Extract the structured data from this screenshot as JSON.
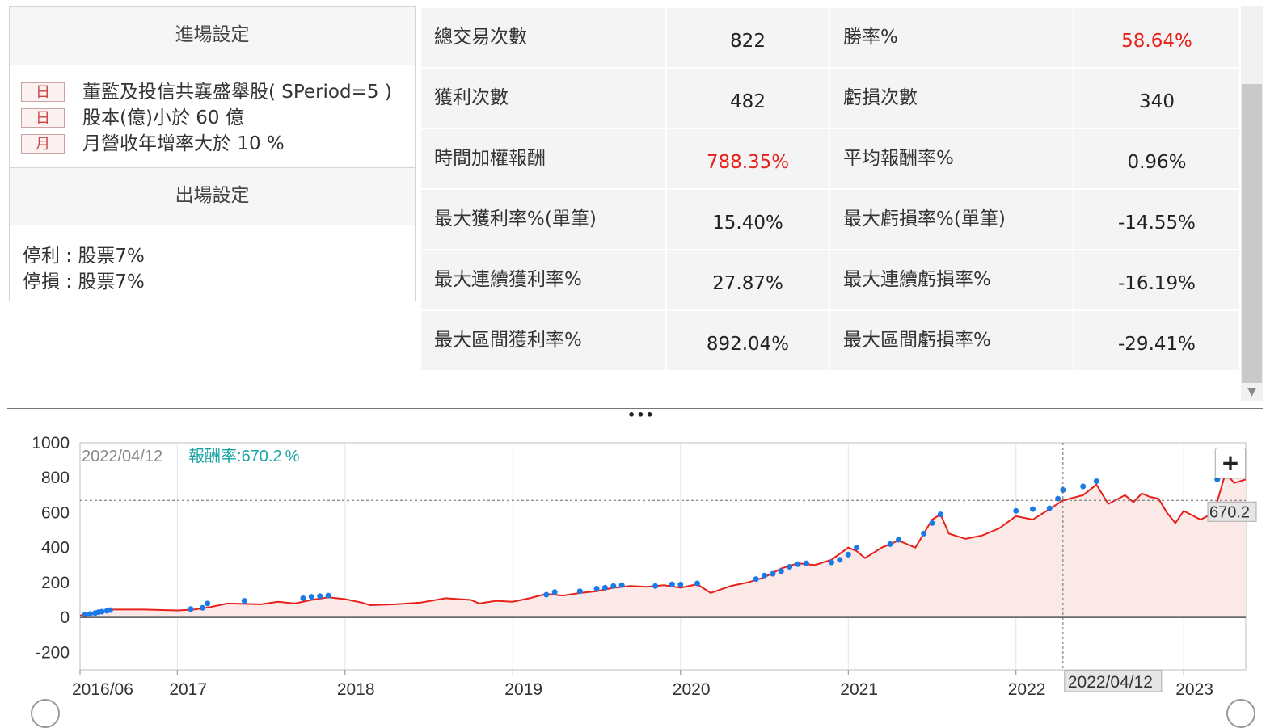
{
  "settings": {
    "entry_title": "進場設定",
    "conditions": [
      {
        "badge": "日",
        "text": "董監及投信共襄盛舉股( SPeriod=5 )"
      },
      {
        "badge": "日",
        "text": "股本(億)小於 60 億"
      },
      {
        "badge": "月",
        "text": "月營收年增率大於 10 %"
      }
    ],
    "exit_title": "出場設定",
    "exit_lines": [
      "停利 : 股票7%",
      "停損 : 股票7%"
    ]
  },
  "stats": {
    "rows": [
      {
        "l1": "總交易次數",
        "v1": "822",
        "l2": "勝率%",
        "v2": "58.64%",
        "v1_red": false,
        "v2_red": true
      },
      {
        "l1": "獲利次數",
        "v1": "482",
        "l2": "虧損次數",
        "v2": "340",
        "v1_red": false,
        "v2_red": false
      },
      {
        "l1": "時間加權報酬",
        "v1": "788.35%",
        "l2": "平均報酬率%",
        "v2": "0.96%",
        "v1_red": true,
        "v2_red": false
      },
      {
        "l1": "最大獲利率%(單筆)",
        "v1": "15.40%",
        "l2": "最大虧損率%(單筆)",
        "v2": "-14.55%",
        "v1_red": false,
        "v2_red": false
      },
      {
        "l1": "最大連續獲利率%",
        "v1": "27.87%",
        "l2": "最大連續虧損率%",
        "v2": "-16.19%",
        "v1_red": false,
        "v2_red": false
      },
      {
        "l1": "最大區間獲利率%",
        "v1": "892.04%",
        "l2": "最大區間虧損率%",
        "v2": "-29.41%",
        "v1_red": false,
        "v2_red": false
      }
    ]
  },
  "chart_data": {
    "type": "area",
    "tooltip": {
      "date": "2022/04/12",
      "label": "報酬率:",
      "value": "670.2",
      "unit": "%"
    },
    "crosshair_x_label": "2022/04/12",
    "crosshair_y_label": "670.2",
    "xlim": [
      2016.42,
      2023.37
    ],
    "x_ticks": [
      {
        "label": "2016/06",
        "x": 2016.42
      },
      {
        "label": "2017",
        "x": 2017.0
      },
      {
        "label": "2018",
        "x": 2018.0
      },
      {
        "label": "2019",
        "x": 2019.0
      },
      {
        "label": "2020",
        "x": 2020.0
      },
      {
        "label": "2021",
        "x": 2021.0
      },
      {
        "label": "2022",
        "x": 2022.0
      },
      {
        "label": "2023",
        "x": 2023.0
      }
    ],
    "ylim": [
      -300,
      1000
    ],
    "y_ticks": [
      1000,
      800,
      600,
      400,
      200,
      0,
      -200
    ],
    "crosshair_x": 2022.28,
    "crosshair_y": 670.2,
    "series": [
      {
        "line_color": "#e8201a",
        "fill_color": "#fbe9e7",
        "points": [
          [
            2016.42,
            10
          ],
          [
            2016.5,
            30
          ],
          [
            2016.6,
            45
          ],
          [
            2016.8,
            45
          ],
          [
            2017.0,
            40
          ],
          [
            2017.1,
            45
          ],
          [
            2017.2,
            60
          ],
          [
            2017.3,
            80
          ],
          [
            2017.5,
            75
          ],
          [
            2017.6,
            90
          ],
          [
            2017.7,
            80
          ],
          [
            2017.8,
            100
          ],
          [
            2017.9,
            115
          ],
          [
            2018.0,
            105
          ],
          [
            2018.1,
            85
          ],
          [
            2018.15,
            70
          ],
          [
            2018.3,
            75
          ],
          [
            2018.45,
            85
          ],
          [
            2018.6,
            110
          ],
          [
            2018.75,
            100
          ],
          [
            2018.8,
            80
          ],
          [
            2018.9,
            95
          ],
          [
            2019.0,
            90
          ],
          [
            2019.1,
            110
          ],
          [
            2019.2,
            135
          ],
          [
            2019.3,
            125
          ],
          [
            2019.4,
            140
          ],
          [
            2019.5,
            150
          ],
          [
            2019.6,
            170
          ],
          [
            2019.7,
            180
          ],
          [
            2019.8,
            175
          ],
          [
            2019.9,
            185
          ],
          [
            2020.0,
            170
          ],
          [
            2020.1,
            190
          ],
          [
            2020.18,
            140
          ],
          [
            2020.3,
            180
          ],
          [
            2020.4,
            200
          ],
          [
            2020.5,
            230
          ],
          [
            2020.6,
            280
          ],
          [
            2020.7,
            310
          ],
          [
            2020.8,
            300
          ],
          [
            2020.9,
            330
          ],
          [
            2021.0,
            400
          ],
          [
            2021.05,
            380
          ],
          [
            2021.1,
            340
          ],
          [
            2021.2,
            400
          ],
          [
            2021.3,
            440
          ],
          [
            2021.4,
            400
          ],
          [
            2021.5,
            560
          ],
          [
            2021.55,
            590
          ],
          [
            2021.6,
            480
          ],
          [
            2021.7,
            450
          ],
          [
            2021.8,
            470
          ],
          [
            2021.9,
            510
          ],
          [
            2022.0,
            580
          ],
          [
            2022.1,
            560
          ],
          [
            2022.2,
            620
          ],
          [
            2022.28,
            670
          ],
          [
            2022.4,
            700
          ],
          [
            2022.48,
            760
          ],
          [
            2022.55,
            650
          ],
          [
            2022.65,
            700
          ],
          [
            2022.7,
            660
          ],
          [
            2022.75,
            710
          ],
          [
            2022.8,
            690
          ],
          [
            2022.85,
            680
          ],
          [
            2022.9,
            600
          ],
          [
            2022.95,
            540
          ],
          [
            2023.0,
            610
          ],
          [
            2023.1,
            560
          ],
          [
            2023.18,
            600
          ],
          [
            2023.22,
            730
          ],
          [
            2023.25,
            830
          ],
          [
            2023.3,
            770
          ],
          [
            2023.37,
            790
          ]
        ],
        "markers": [
          [
            2016.45,
            15
          ],
          [
            2016.48,
            20
          ],
          [
            2016.51,
            25
          ],
          [
            2016.53,
            30
          ],
          [
            2016.55,
            33
          ],
          [
            2016.58,
            38
          ],
          [
            2016.6,
            42
          ],
          [
            2017.08,
            48
          ],
          [
            2017.15,
            55
          ],
          [
            2017.18,
            80
          ],
          [
            2017.4,
            95
          ],
          [
            2017.75,
            110
          ],
          [
            2017.8,
            118
          ],
          [
            2017.85,
            122
          ],
          [
            2017.9,
            125
          ],
          [
            2019.2,
            130
          ],
          [
            2019.25,
            145
          ],
          [
            2019.4,
            150
          ],
          [
            2019.5,
            165
          ],
          [
            2019.55,
            170
          ],
          [
            2019.6,
            180
          ],
          [
            2019.65,
            185
          ],
          [
            2019.85,
            180
          ],
          [
            2019.95,
            190
          ],
          [
            2020.0,
            188
          ],
          [
            2020.1,
            195
          ],
          [
            2020.45,
            220
          ],
          [
            2020.5,
            240
          ],
          [
            2020.55,
            250
          ],
          [
            2020.6,
            265
          ],
          [
            2020.65,
            290
          ],
          [
            2020.7,
            305
          ],
          [
            2020.75,
            310
          ],
          [
            2020.9,
            315
          ],
          [
            2020.95,
            330
          ],
          [
            2021.0,
            360
          ],
          [
            2021.05,
            400
          ],
          [
            2021.25,
            420
          ],
          [
            2021.3,
            445
          ],
          [
            2021.45,
            480
          ],
          [
            2021.5,
            540
          ],
          [
            2021.55,
            590
          ],
          [
            2022.0,
            610
          ],
          [
            2022.1,
            620
          ],
          [
            2022.2,
            625
          ],
          [
            2022.25,
            680
          ],
          [
            2022.28,
            730
          ],
          [
            2022.4,
            750
          ],
          [
            2022.48,
            780
          ],
          [
            2023.2,
            790
          ],
          [
            2023.25,
            860
          ]
        ]
      }
    ]
  },
  "zoom_button": {
    "label": "+"
  }
}
